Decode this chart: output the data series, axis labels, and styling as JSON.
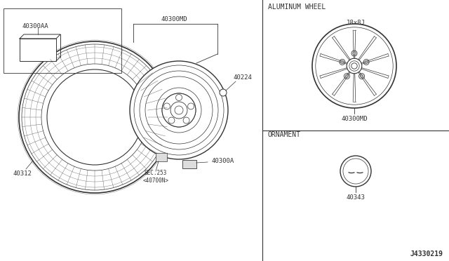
{
  "bg_color": "#ffffff",
  "line_color": "#333333",
  "diagram_id": "J4330219",
  "parts": {
    "tire_label": "40312",
    "wheel_label": "40300MD",
    "valve_label": "40224",
    "weight_label": "40300A",
    "sec_label": "SEC.253\n<40700N>",
    "balance_label": "40300AA",
    "alu_wheel_label": "40300MD",
    "ornament_label": "40343",
    "alu_section_title": "ALUMINUM WHEEL",
    "alu_wheel_size": "18x8J",
    "ornament_section_title": "ORNAMENT"
  }
}
